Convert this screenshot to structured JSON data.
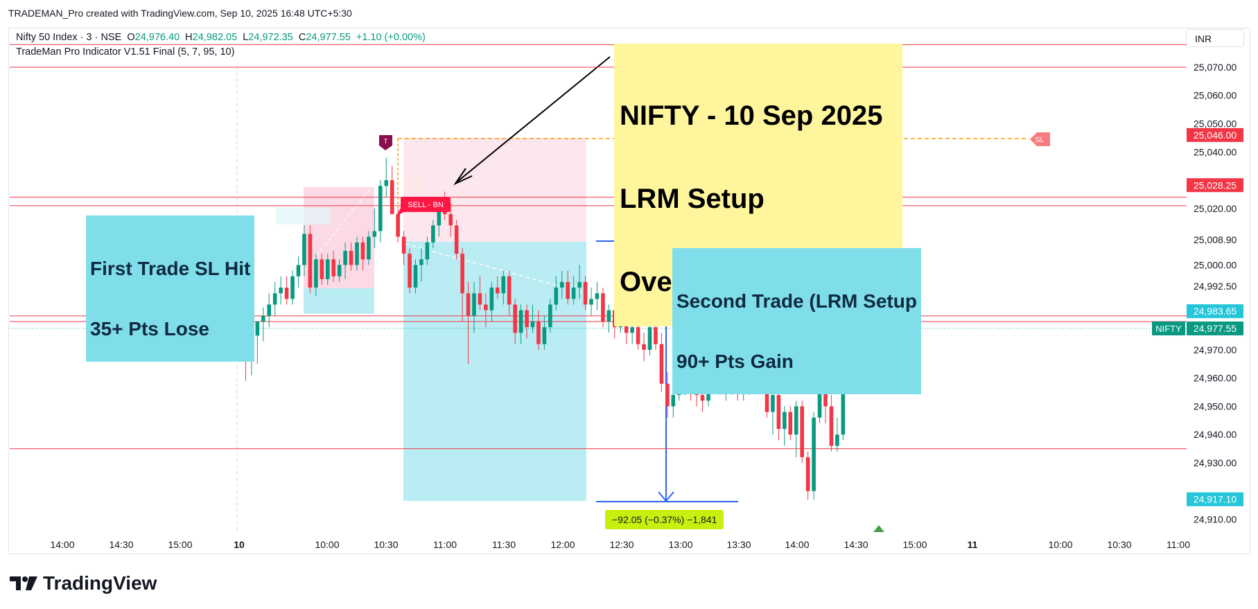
{
  "header": {
    "attribution": "TRADEMAN_Pro created with TradingView.com, Sep 10, 2025 16:48 UTC+5:30"
  },
  "legend": {
    "symbol": "Nifty 50 Index · 3 · NSE",
    "o_label": "O",
    "o_value": "24,976.40",
    "h_label": "H",
    "h_value": "24,982.05",
    "l_label": "L",
    "l_value": "24,972.35",
    "c_label": "C",
    "c_value": "24,977.55",
    "change": "+1.10 (+0.00%)",
    "indicator": "TradeMan Pro Indicator V1.51 Final (5, 7, 95, 10)"
  },
  "currency": "INR",
  "annotations": {
    "title_lines": [
      "NIFTY - 10 Sep 2025",
      "LRM Setup",
      "Overall Positive Gain"
    ],
    "first_trade": [
      "First Trade SL Hit",
      "35+ Pts Lose"
    ],
    "second_trade": [
      "Second Trade (LRM Setup",
      "90+ Pts Gain"
    ],
    "sell_label": "SELL - BN",
    "sl_label": "SL",
    "t_marker": "T",
    "measure": "−92.05 (−0.37%) −1,841"
  },
  "logo": {
    "text": "TradingView"
  },
  "colors": {
    "up": "#089981",
    "down": "#f23645",
    "accent_blue": "#2962ff",
    "callout": "#fff59d",
    "note": "#80deea"
  },
  "chart_data": {
    "type": "candlestick",
    "x_ticks": [
      "14:00",
      "14:30",
      "15:00",
      "10",
      "10:00",
      "10:30",
      "11:00",
      "11:30",
      "12:00",
      "12:30",
      "13:00",
      "13:30",
      "14:00",
      "14:30",
      "15:00",
      "11",
      "10:00",
      "10:30",
      "11:00"
    ],
    "y_ticks": [
      "25,070.00",
      "25,060.00",
      "25,050.00",
      "25,040.00",
      "25,020.00",
      "25,008.90",
      "25,000.00",
      "24,992.50",
      "24,970.00",
      "24,960.00",
      "24,950.00",
      "24,940.00",
      "24,930.00",
      "24,910.00"
    ],
    "ylim": [
      24905,
      25082
    ],
    "price_tags": [
      {
        "value": "25,046.00",
        "color": "#f23645"
      },
      {
        "value": "25,028.25",
        "color": "#f23645"
      },
      {
        "value": "24,983.65",
        "color": "#26c6da"
      },
      {
        "value": "24,977.55",
        "color": "#089981"
      },
      {
        "value": "24,917.10",
        "color": "#26c6da"
      }
    ],
    "symbol_tag": "NIFTY",
    "horizontal_lines": [
      25078,
      25070,
      25024,
      25021,
      24982,
      24980,
      24935
    ],
    "candles": [
      [
        24992,
        24994,
        24972,
        24976
      ],
      [
        24976,
        24978,
        24959,
        24966
      ],
      [
        24966,
        24978,
        24961,
        24975
      ],
      [
        24975,
        24980,
        24965,
        24980
      ],
      [
        24980,
        24985,
        24973,
        24982
      ],
      [
        24982,
        24990,
        24978,
        24986
      ],
      [
        24986,
        24994,
        24982,
        24990
      ],
      [
        24990,
        24996,
        24986,
        24992
      ],
      [
        24992,
        24996,
        24986,
        24988
      ],
      [
        24988,
        24998,
        24986,
        24996
      ],
      [
        24996,
        25003,
        24992,
        25000
      ],
      [
        25000,
        25014,
        24996,
        25011
      ],
      [
        25011,
        25014,
        24990,
        24992
      ],
      [
        24992,
        25004,
        24989,
        25002
      ],
      [
        25002,
        25004,
        24993,
        24995
      ],
      [
        24995,
        25004,
        24993,
        25002
      ],
      [
        25002,
        25005,
        24994,
        24996
      ],
      [
        24996,
        25002,
        24994,
        25000
      ],
      [
        25000,
        25008,
        24995,
        25005
      ],
      [
        25005,
        25008,
        24998,
        25000
      ],
      [
        25000,
        25010,
        24998,
        25008
      ],
      [
        25008,
        25010,
        24998,
        25002
      ],
      [
        25002,
        25012,
        25000,
        25010
      ],
      [
        25010,
        25020,
        25006,
        25012
      ],
      [
        25012,
        25030,
        25008,
        25028
      ],
      [
        25028,
        25038,
        25024,
        25030
      ],
      [
        25030,
        25035,
        25018,
        25018
      ],
      [
        25018,
        25020,
        25008,
        25010
      ],
      [
        25010,
        25012,
        25000,
        25004
      ],
      [
        25004,
        25006,
        24990,
        24992
      ],
      [
        24992,
        25002,
        24990,
        25000
      ],
      [
        25000,
        25006,
        24994,
        25002
      ],
      [
        25002,
        25010,
        25000,
        25008
      ],
      [
        25008,
        25016,
        25006,
        25014
      ],
      [
        25014,
        25024,
        25010,
        25022
      ],
      [
        25022,
        25026,
        25016,
        25018
      ],
      [
        25018,
        25022,
        25010,
        25014
      ],
      [
        25014,
        25016,
        25002,
        25004
      ],
      [
        25004,
        25006,
        24980,
        24990
      ],
      [
        24990,
        24994,
        24965,
        24982
      ],
      [
        24982,
        24994,
        24976,
        24990
      ],
      [
        24990,
        24996,
        24984,
        24986
      ],
      [
        24986,
        24990,
        24978,
        24984
      ],
      [
        24984,
        24994,
        24980,
        24992
      ],
      [
        24992,
        24996,
        24988,
        24990
      ],
      [
        24990,
        24998,
        24986,
        24996
      ],
      [
        24996,
        24998,
        24982,
        24986
      ],
      [
        24986,
        24988,
        24972,
        24976
      ],
      [
        24976,
        24986,
        24972,
        24984
      ],
      [
        24984,
        24986,
        24974,
        24978
      ],
      [
        24978,
        24986,
        24976,
        24980
      ],
      [
        24980,
        24984,
        24970,
        24972
      ],
      [
        24972,
        24982,
        24970,
        24978
      ],
      [
        24978,
        24988,
        24976,
        24986
      ],
      [
        24986,
        24996,
        24984,
        24992
      ],
      [
        24992,
        24998,
        24988,
        24994
      ],
      [
        24994,
        24998,
        24986,
        24988
      ],
      [
        24988,
        24996,
        24986,
        24992
      ],
      [
        24992,
        25000,
        24988,
        24994
      ],
      [
        24994,
        24996,
        24984,
        24986
      ],
      [
        24986,
        24992,
        24982,
        24988
      ],
      [
        24988,
        24994,
        24984,
        24990
      ],
      [
        24990,
        24992,
        24978,
        24980
      ],
      [
        24980,
        24986,
        24976,
        24984
      ],
      [
        24984,
        24986,
        24974,
        24978
      ],
      [
        24978,
        24984,
        24976,
        24982
      ],
      [
        24982,
        24984,
        24972,
        24976
      ],
      [
        24976,
        24980,
        24972,
        24978
      ],
      [
        24978,
        24982,
        24970,
        24972
      ],
      [
        24972,
        24976,
        24966,
        24970
      ],
      [
        24970,
        24980,
        24968,
        24978
      ],
      [
        24978,
        24980,
        24970,
        24972
      ],
      [
        24972,
        24976,
        24955,
        24958
      ],
      [
        24958,
        24962,
        24946,
        24950
      ],
      [
        24950,
        24956,
        24946,
        24954
      ],
      [
        24954,
        24960,
        24952,
        24958
      ],
      [
        24958,
        24968,
        24954,
        24966
      ],
      [
        24966,
        24968,
        24952,
        24956
      ],
      [
        24956,
        24960,
        24950,
        24954
      ],
      [
        24954,
        24958,
        24948,
        24952
      ],
      [
        24952,
        24964,
        24950,
        24962
      ],
      [
        24962,
        24966,
        24958,
        24964
      ],
      [
        24964,
        24966,
        24954,
        24956
      ],
      [
        24956,
        24962,
        24952,
        24960
      ],
      [
        24960,
        24962,
        24954,
        24958
      ],
      [
        24958,
        24962,
        24952,
        24956
      ],
      [
        24956,
        24960,
        24952,
        24958
      ],
      [
        24958,
        24978,
        24954,
        24976
      ],
      [
        24976,
        24980,
        24966,
        24972
      ],
      [
        24972,
        24974,
        24960,
        24962
      ],
      [
        24962,
        24964,
        24946,
        24948
      ],
      [
        24948,
        24956,
        24940,
        24954
      ],
      [
        24954,
        24956,
        24938,
        24942
      ],
      [
        24942,
        24950,
        24936,
        24948
      ],
      [
        24948,
        24950,
        24938,
        24940
      ],
      [
        24940,
        24952,
        24932,
        24950
      ],
      [
        24950,
        24952,
        24930,
        24932
      ],
      [
        24932,
        24934,
        24917,
        24920
      ],
      [
        24920,
        24948,
        24917,
        24946
      ],
      [
        24946,
        24960,
        24944,
        24956
      ],
      [
        24956,
        24958,
        24944,
        24950
      ],
      [
        24950,
        24954,
        24934,
        24936
      ],
      [
        24936,
        24946,
        24934,
        24940
      ],
      [
        24940,
        24962,
        24938,
        24960
      ],
      [
        24960,
        24972,
        24958,
        24970
      ],
      [
        24970,
        24978,
        24966,
        24976
      ],
      [
        24976,
        24982,
        24972,
        24980
      ],
      [
        24980,
        24986,
        24976,
        24984
      ],
      [
        24984,
        24988,
        24976,
        24978
      ],
      [
        24978,
        24982,
        24974,
        24980
      ],
      [
        24980,
        24982,
        24972,
        24976
      ],
      [
        24976,
        24980,
        24972,
        24978
      ]
    ]
  }
}
